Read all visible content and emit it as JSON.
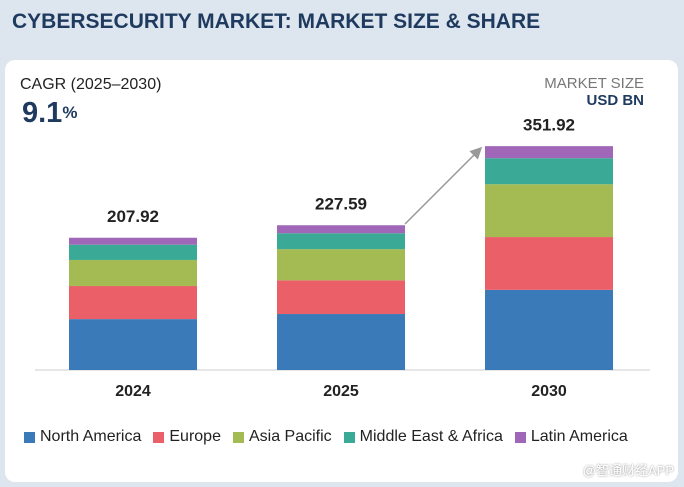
{
  "chart_data": {
    "type": "stacked-bar",
    "title": "CYBERSECURITY MARKET: MARKET SIZE & SHARE",
    "cagr_label": "CAGR (2025–2030)",
    "cagr_value": 9.1,
    "cagr_unit": "%",
    "unit_label": "MARKET SIZE",
    "unit": "USD BN",
    "categories": [
      "2024",
      "2025",
      "2030"
    ],
    "totals": [
      207.92,
      227.59,
      351.92
    ],
    "series": [
      {
        "name": "North America",
        "color": "#3a7ab8",
        "values": [
          80,
          88,
          126
        ]
      },
      {
        "name": "Europe",
        "color": "#ea5f68",
        "values": [
          52,
          53,
          83
        ]
      },
      {
        "name": "Asia Pacific",
        "color": "#a3bb52",
        "values": [
          41,
          49,
          83
        ]
      },
      {
        "name": "Middle East & Africa",
        "color": "#3aaa96",
        "values": [
          24,
          25,
          41
        ]
      },
      {
        "name": "Latin America",
        "color": "#a067b8",
        "values": [
          10.92,
          12.59,
          18.92
        ]
      }
    ],
    "ylim": [
      0,
      360
    ],
    "watermark": "@智通财经APP"
  }
}
